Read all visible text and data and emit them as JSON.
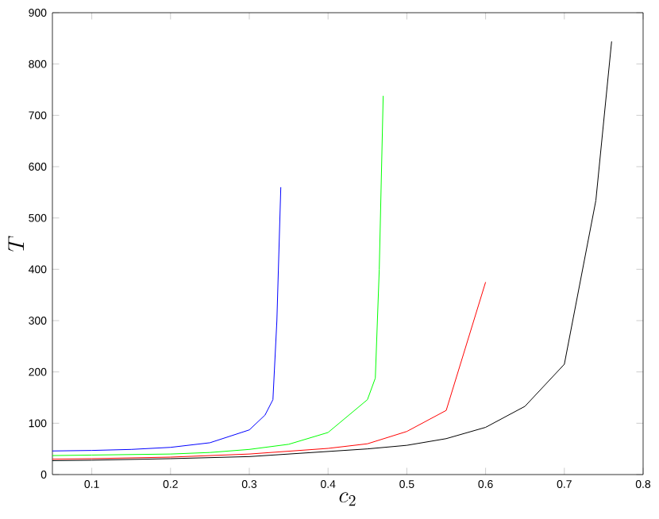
{
  "chart_data": {
    "type": "line",
    "xlabel": "c_2",
    "ylabel": "T",
    "xlim": [
      0.05,
      0.8
    ],
    "ylim": [
      0,
      900
    ],
    "xticks": [
      0.1,
      0.2,
      0.3,
      0.4,
      0.5,
      0.6,
      0.7,
      0.8
    ],
    "yticks": [
      0,
      100,
      200,
      300,
      400,
      500,
      600,
      700,
      800,
      900
    ],
    "series": [
      {
        "color": "#0000ff",
        "x": [
          0.05,
          0.1,
          0.15,
          0.2,
          0.25,
          0.3,
          0.32,
          0.33,
          0.335,
          0.34
        ],
        "values": [
          46,
          47,
          49,
          53,
          62,
          87,
          116,
          146,
          300,
          560
        ]
      },
      {
        "color": "#00ff00",
        "x": [
          0.05,
          0.1,
          0.2,
          0.25,
          0.3,
          0.35,
          0.4,
          0.45,
          0.46,
          0.465,
          0.47
        ],
        "values": [
          37,
          38,
          40,
          43,
          49,
          59,
          82,
          146,
          188,
          400,
          738
        ]
      },
      {
        "color": "#ff0000",
        "x": [
          0.05,
          0.1,
          0.2,
          0.3,
          0.4,
          0.45,
          0.5,
          0.55,
          0.6
        ],
        "values": [
          30,
          31,
          34,
          40,
          51,
          60,
          84,
          125,
          375
        ]
      },
      {
        "color": "#000000",
        "x": [
          0.05,
          0.1,
          0.2,
          0.3,
          0.4,
          0.45,
          0.5,
          0.55,
          0.6,
          0.65,
          0.7,
          0.74,
          0.76
        ],
        "values": [
          27,
          28,
          31,
          35,
          45,
          50,
          57,
          70,
          92,
          133,
          215,
          534,
          844
        ]
      }
    ]
  }
}
